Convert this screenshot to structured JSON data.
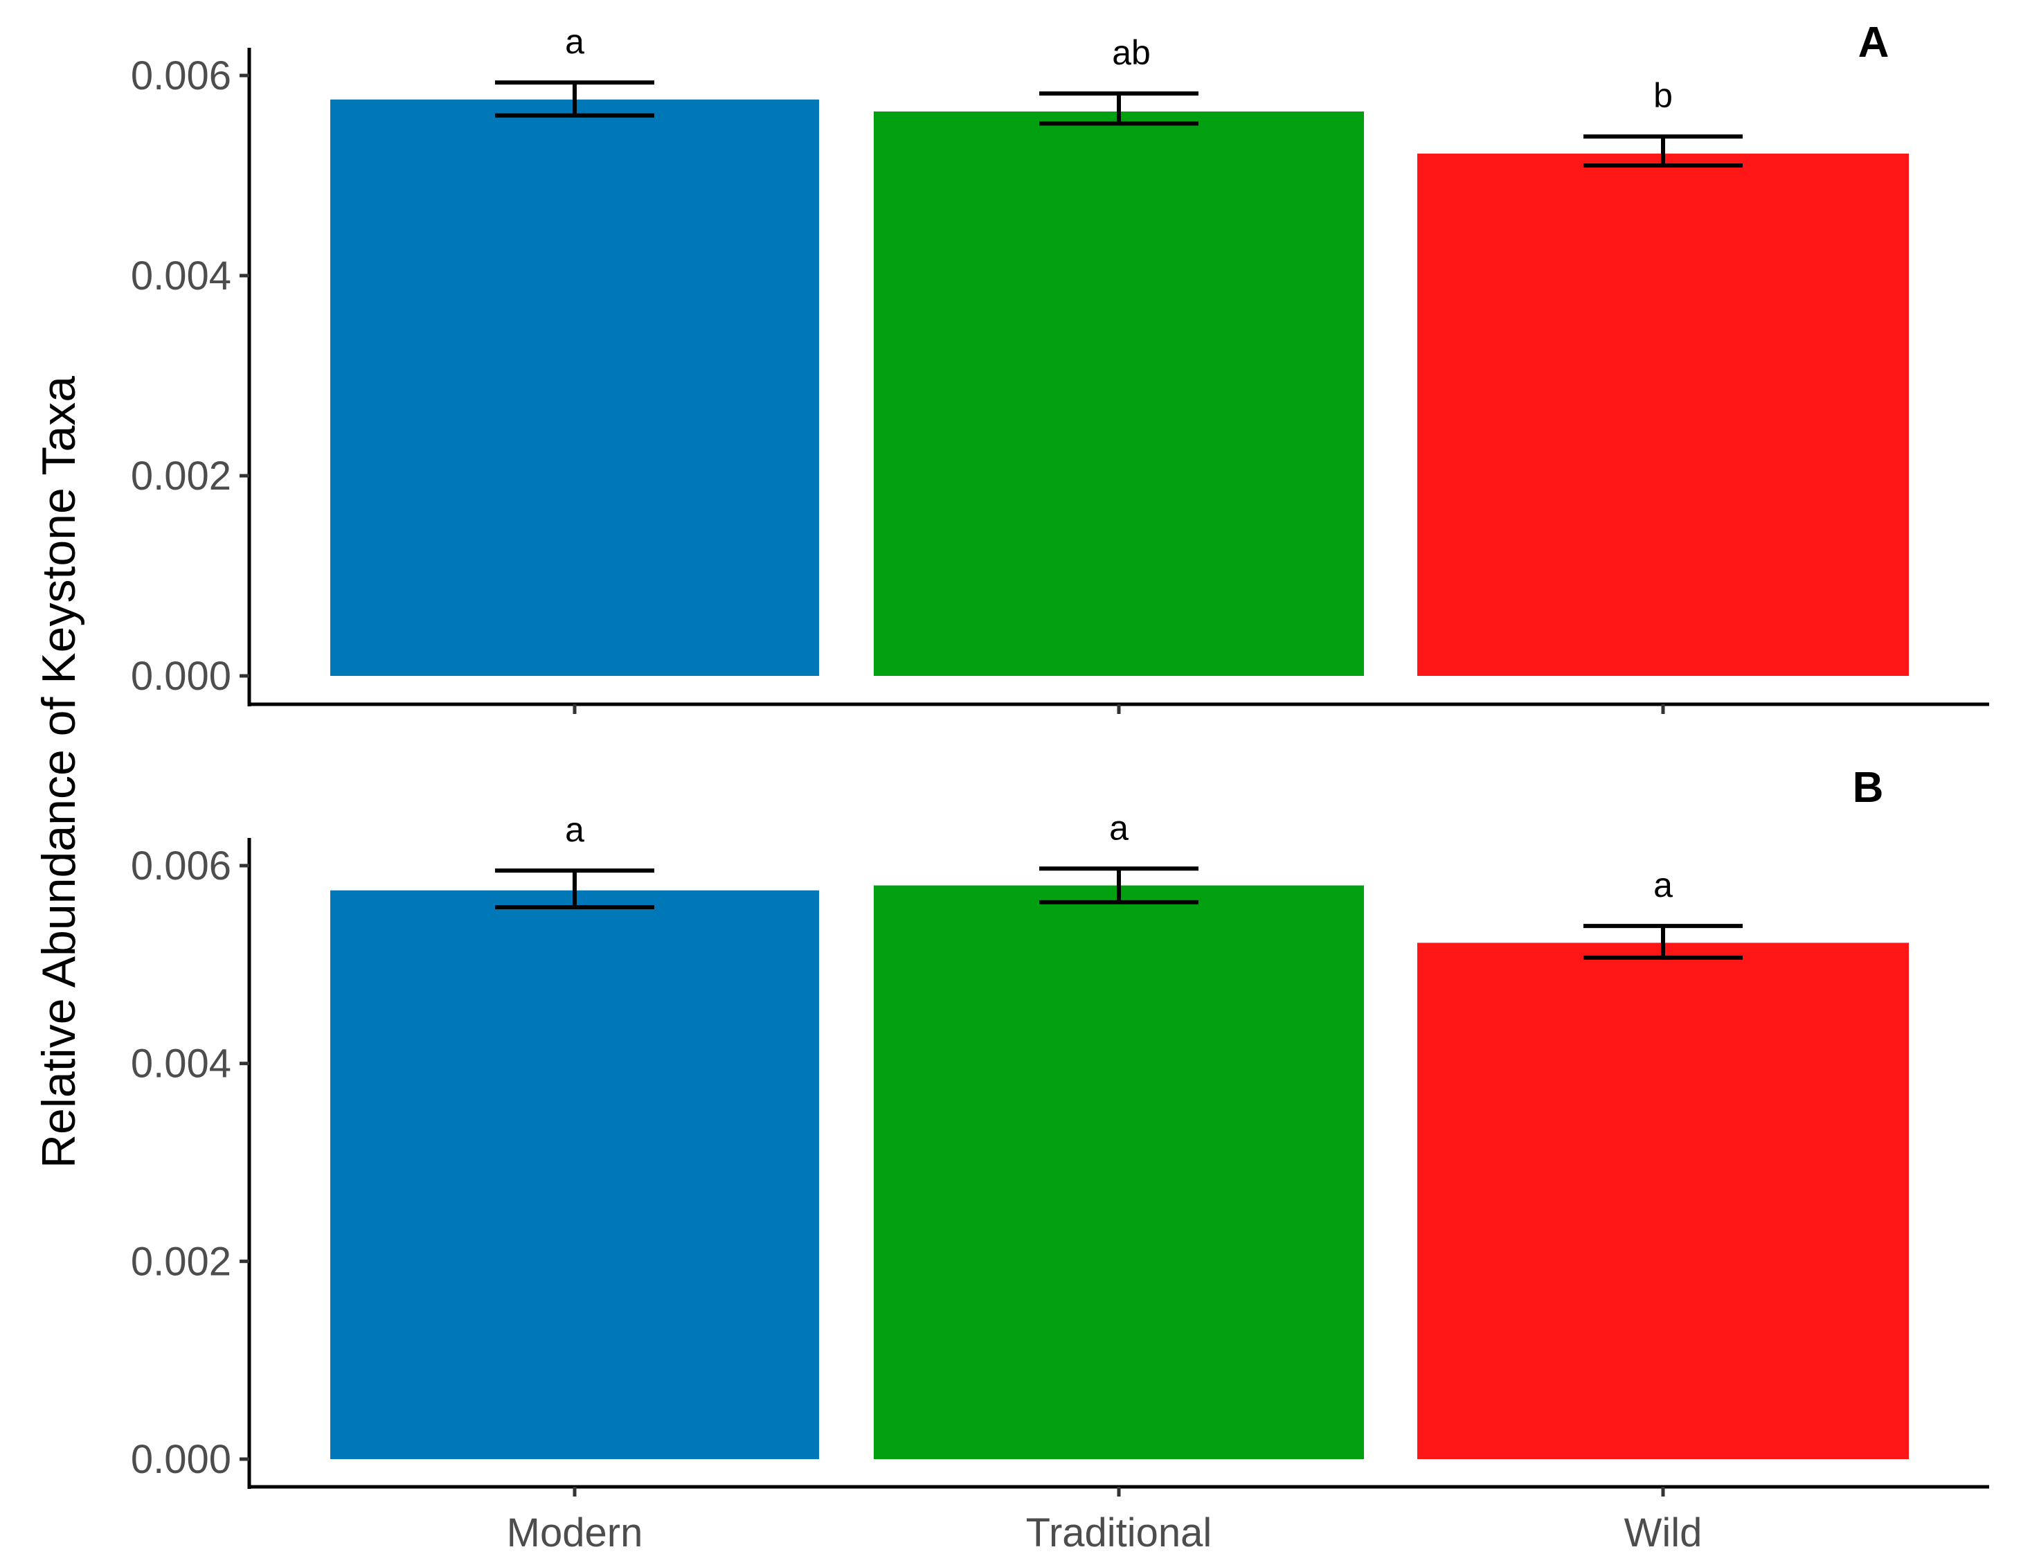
{
  "chart_data": {
    "type": "bar",
    "ylabel": "Relative Abundance of Keystone Taxa",
    "categories": [
      "Modern",
      "Traditional",
      "Wild"
    ],
    "colors": [
      "#0077b6",
      "#00a010",
      "#ff1717"
    ],
    "ylim": [
      0,
      0.0063
    ],
    "yticks": [
      0,
      0.002,
      0.004,
      0.006
    ],
    "ytick_labels": [
      "0.000",
      "0.002",
      "0.004",
      "0.006"
    ],
    "grid": false,
    "legend": "none",
    "panels": [
      {
        "label": "A",
        "values": [
          0.00576,
          0.00564,
          0.00522
        ],
        "err_low": [
          0.0056,
          0.00552,
          0.0051
        ],
        "err_high": [
          0.00593,
          0.00582,
          0.00539
        ],
        "significance": [
          "a",
          "ab",
          "b"
        ]
      },
      {
        "label": "B",
        "values": [
          0.00575,
          0.0058,
          0.00522
        ],
        "err_low": [
          0.00558,
          0.00563,
          0.00507
        ],
        "err_high": [
          0.00595,
          0.00597,
          0.00539
        ],
        "significance": [
          "a",
          "a",
          "a"
        ]
      }
    ]
  }
}
